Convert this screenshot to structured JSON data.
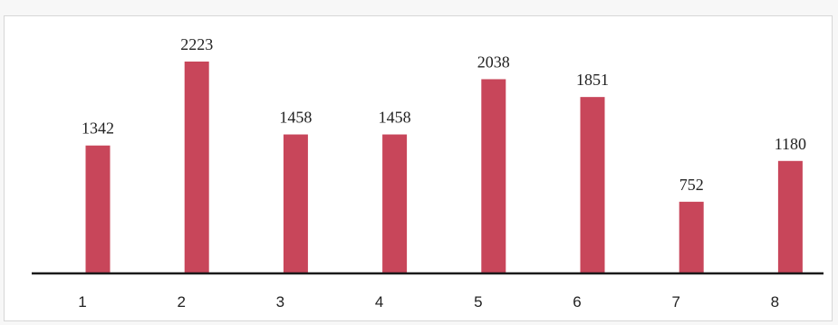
{
  "chart_data": {
    "type": "bar",
    "categories": [
      "1",
      "2",
      "3",
      "4",
      "5",
      "6",
      "7",
      "8"
    ],
    "values": [
      1342,
      2223,
      1458,
      1458,
      2038,
      1851,
      752,
      1180
    ],
    "data_labels": [
      "1342",
      "2223",
      "1458",
      "1458",
      "2038",
      "1851",
      "752",
      "1180"
    ],
    "title": "",
    "xlabel": "",
    "ylabel": "",
    "ylim": [
      0,
      2223
    ],
    "grid": false,
    "legend": "none",
    "colors": {
      "bar": "#c8465a",
      "axis": "#1a1a1a"
    }
  }
}
